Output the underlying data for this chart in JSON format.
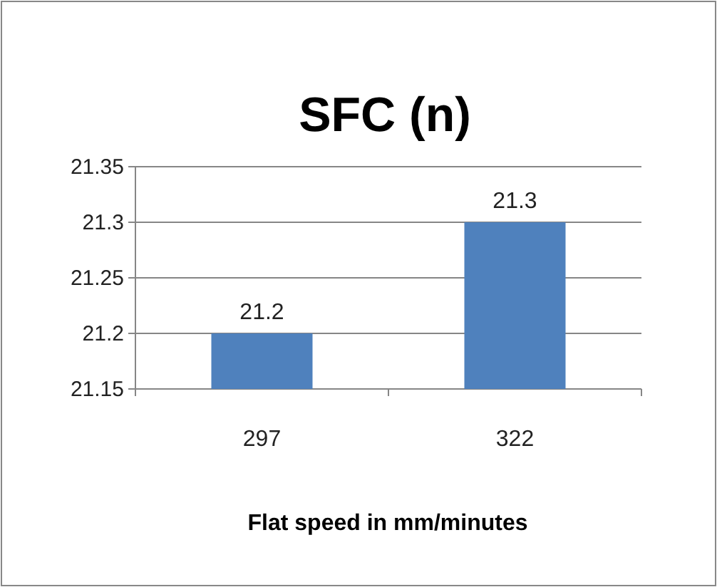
{
  "chart_data": {
    "type": "bar",
    "title": "SFC (n)",
    "xlabel": "Flat speed in mm/minutes",
    "categories": [
      "297",
      "322"
    ],
    "values": [
      21.2,
      21.3
    ],
    "color": "#4f81bd",
    "ylim": [
      21.15,
      21.35
    ],
    "yticks": [
      21.15,
      21.2,
      21.25,
      21.3,
      21.35
    ],
    "grid": "y",
    "data_labels": true
  }
}
